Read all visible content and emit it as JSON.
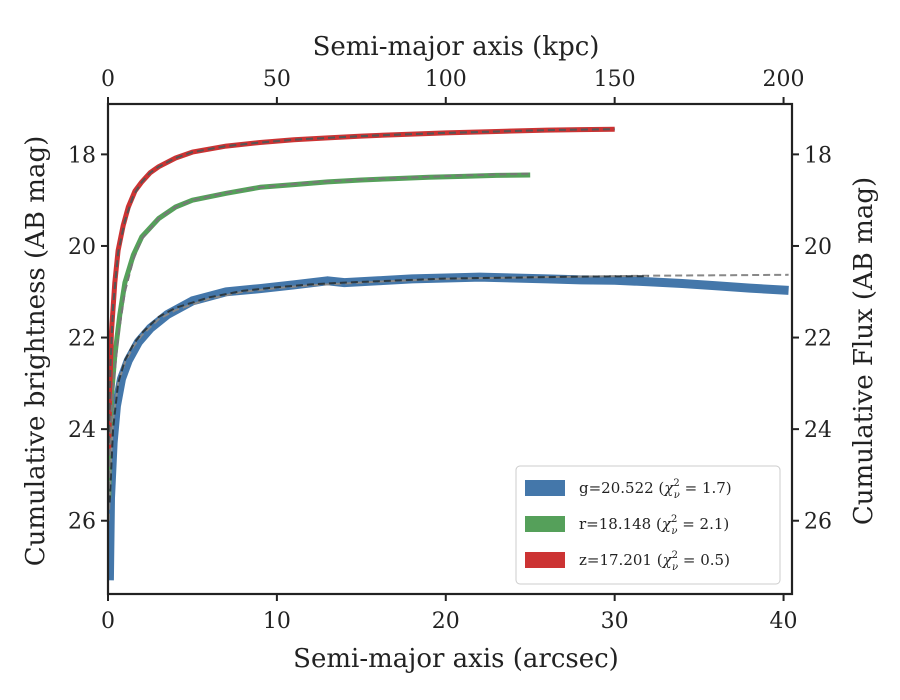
{
  "chart_data": {
    "type": "line",
    "xlabel": "Semi-major axis (arcsec)",
    "xlabel_top": "Semi-major axis (kpc)",
    "ylabel": "Cumulative brightness (AB mag)",
    "ylabel_right": "Cumulative Flux (AB mag)",
    "xlim": [
      0,
      40.5
    ],
    "ylim": [
      27.6,
      16.9
    ],
    "y_inverted": true,
    "x_ticks": [
      0,
      10,
      20,
      30,
      40
    ],
    "x_tick_labels": [
      "0",
      "10",
      "20",
      "30",
      "40"
    ],
    "x_top_ticks": [
      0,
      50,
      100,
      150,
      200
    ],
    "x_top_tick_labels": [
      "0",
      "50",
      "100",
      "150",
      "200"
    ],
    "y_ticks": [
      18,
      20,
      22,
      24,
      26
    ],
    "y_tick_labels": [
      "18",
      "20",
      "22",
      "24",
      "26"
    ],
    "grid": false,
    "legend_position": "lower-right",
    "series": [
      {
        "name": "g=20.522 (χ²_ν = 1.7)",
        "legend_main": "g=20.522 (",
        "legend_sup": "2",
        "legend_sub": "ν",
        "legend_tail": " = 1.7)",
        "color": "#4477aa",
        "width": 9,
        "x": [
          0.08,
          0.15,
          0.3,
          0.5,
          0.8,
          1.2,
          1.8,
          2.5,
          3.5,
          5,
          7,
          9,
          11,
          13,
          14,
          16,
          18,
          20,
          22,
          24,
          26,
          28,
          30,
          32,
          34,
          36,
          38,
          40.3
        ],
        "y": [
          27.3,
          25.5,
          24.3,
          23.5,
          22.9,
          22.5,
          22.1,
          21.8,
          21.5,
          21.2,
          21.0,
          20.93,
          20.85,
          20.76,
          20.8,
          20.76,
          20.72,
          20.7,
          20.68,
          20.7,
          20.72,
          20.74,
          20.75,
          20.78,
          20.82,
          20.87,
          20.92,
          20.97
        ]
      },
      {
        "name": "r=18.148 (χ²_ν = 2.1)",
        "legend_main": "r=18.148 (",
        "legend_sup": "2",
        "legend_sub": "ν",
        "legend_tail": " = 2.1)",
        "color": "#55a05a",
        "width": 5,
        "x": [
          0.05,
          0.1,
          0.2,
          0.4,
          0.7,
          1,
          1.5,
          2,
          3,
          4,
          5,
          7,
          9,
          11,
          13,
          15,
          17,
          19,
          21,
          23,
          25
        ],
        "y": [
          25.5,
          24.2,
          23.3,
          22.4,
          21.5,
          20.8,
          20.2,
          19.8,
          19.4,
          19.15,
          19.0,
          18.85,
          18.72,
          18.66,
          18.6,
          18.56,
          18.53,
          18.5,
          18.48,
          18.46,
          18.45
        ]
      },
      {
        "name": "z=17.201 (χ²_ν = 0.5)",
        "legend_main": "z=17.201 (",
        "legend_sup": "2",
        "legend_sub": "ν",
        "legend_tail": " = 0.5)",
        "color": "#cc3333",
        "width": 5,
        "x": [
          0.05,
          0.1,
          0.2,
          0.4,
          0.6,
          0.9,
          1.2,
          1.6,
          2,
          2.5,
          3,
          4,
          5,
          7,
          9,
          11,
          13,
          15,
          17,
          20,
          23,
          26,
          28,
          30
        ],
        "y": [
          24.5,
          23.2,
          21.9,
          20.8,
          20.1,
          19.55,
          19.15,
          18.8,
          18.6,
          18.4,
          18.27,
          18.08,
          17.95,
          17.82,
          17.74,
          17.68,
          17.64,
          17.6,
          17.57,
          17.53,
          17.5,
          17.47,
          17.46,
          17.45
        ]
      }
    ],
    "model_fits": [
      {
        "color": "#888888",
        "x": [
          0.05,
          0.15,
          0.3,
          0.6,
          1,
          1.5,
          2,
          3,
          4,
          6,
          8,
          10,
          12,
          14,
          16,
          18,
          20,
          24,
          28,
          32,
          36,
          40.3
        ],
        "y": [
          26.0,
          24.8,
          23.8,
          23.0,
          22.55,
          22.2,
          21.95,
          21.6,
          21.4,
          21.15,
          21.0,
          20.92,
          20.86,
          20.82,
          20.78,
          20.75,
          20.72,
          20.69,
          20.67,
          20.65,
          20.64,
          20.63
        ]
      },
      {
        "color": "#2d3a42",
        "x": [
          0.1,
          0.3,
          0.6,
          1,
          1.5,
          2,
          3,
          4,
          6,
          8,
          10,
          12,
          14,
          16,
          18,
          20,
          24,
          28,
          32
        ],
        "y": [
          25.6,
          24.0,
          23.0,
          22.5,
          22.15,
          21.9,
          21.55,
          21.35,
          21.12,
          20.98,
          20.9,
          20.84,
          20.8,
          20.77,
          20.74,
          20.71,
          20.69,
          20.67,
          20.66
        ]
      },
      {
        "color": "#777777",
        "x": [
          0.05,
          0.15,
          0.3,
          0.6,
          1,
          1.5,
          2,
          3,
          4,
          5,
          7,
          9,
          11,
          13,
          15,
          17,
          19,
          21,
          23,
          25
        ],
        "y": [
          25.3,
          24.0,
          23.1,
          22.0,
          21.0,
          20.3,
          19.85,
          19.4,
          19.15,
          19.0,
          18.84,
          18.72,
          18.65,
          18.59,
          18.55,
          18.52,
          18.49,
          18.46,
          18.44,
          18.42
        ]
      },
      {
        "color": "#555555",
        "x": [
          0.05,
          0.15,
          0.3,
          0.6,
          1,
          1.5,
          2,
          2.5,
          3,
          4,
          5,
          7,
          9,
          11,
          13,
          15,
          17,
          20,
          23,
          26,
          28,
          30
        ],
        "y": [
          24.3,
          22.6,
          21.3,
          20.15,
          19.45,
          18.9,
          18.6,
          18.4,
          18.27,
          18.08,
          17.95,
          17.82,
          17.74,
          17.68,
          17.64,
          17.6,
          17.57,
          17.53,
          17.5,
          17.47,
          17.46,
          17.45
        ]
      }
    ]
  }
}
